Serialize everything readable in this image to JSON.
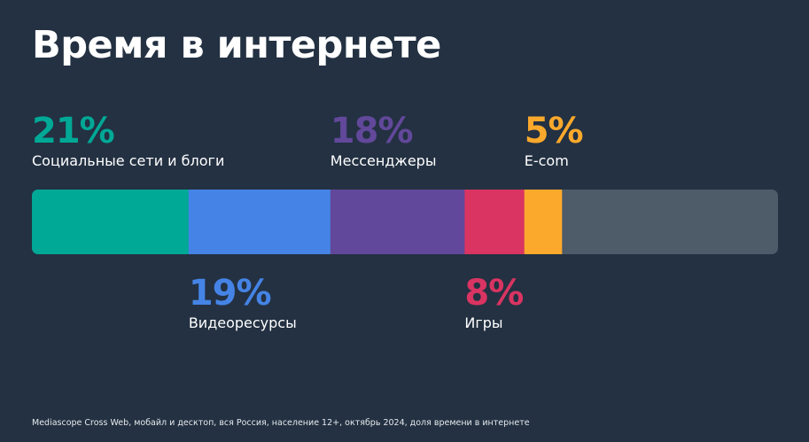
{
  "title": "Время в интернете",
  "source": "Mediascope Cross Web, мобайл и десктоп, вся Россия, население 12+, октябрь 2024, доля времени в интернете",
  "chart_data": {
    "type": "bar",
    "orientation": "horizontal-stacked",
    "total": 100,
    "unit": "%",
    "segments": [
      {
        "label": "Социальные сети и блоги",
        "value": 21,
        "display": "21%",
        "color": "#00a896",
        "label_side": "above"
      },
      {
        "label": "Видеоресурсы",
        "value": 19,
        "display": "19%",
        "color": "#4584e6",
        "label_side": "below"
      },
      {
        "label": "Мессенджеры",
        "value": 18,
        "display": "18%",
        "color": "#62489a",
        "label_side": "above"
      },
      {
        "label": "Игры",
        "value": 8,
        "display": "8%",
        "color": "#d93462",
        "label_side": "below"
      },
      {
        "label": "E-com",
        "value": 5,
        "display": "5%",
        "color": "#fba92c",
        "label_side": "above"
      }
    ],
    "remainder_color": "#4e5b69"
  }
}
